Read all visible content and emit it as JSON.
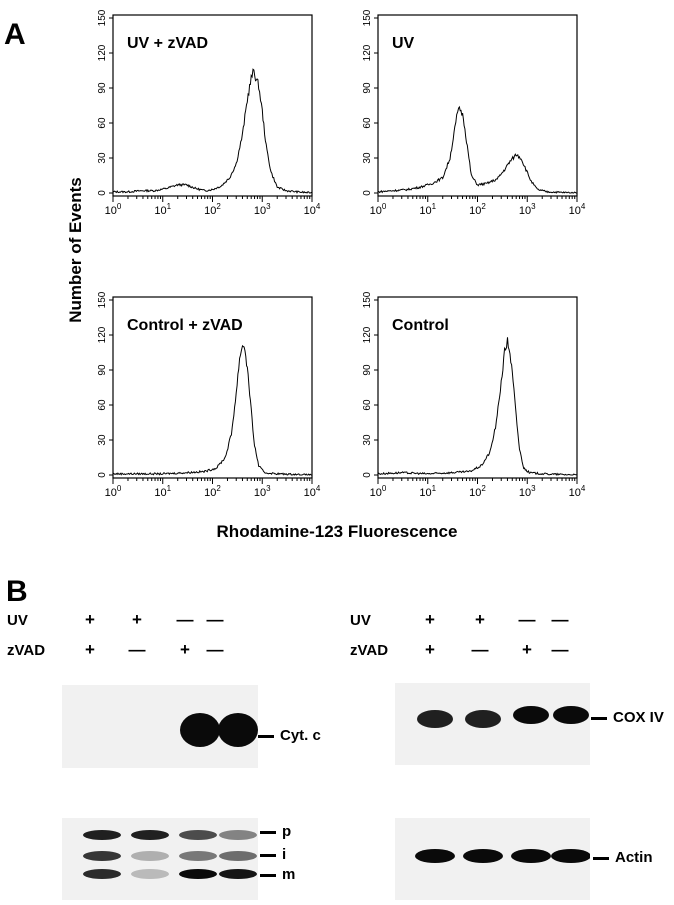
{
  "panel_a": {
    "letter": "A",
    "ylabel": "Number of Events",
    "xlabel": "Rhodamine-123 Fluorescence"
  },
  "chart_data": [
    {
      "type": "line",
      "title": "UV + zVAD",
      "xscale": "log",
      "xlim": [
        1,
        10000
      ],
      "ylim": [
        0,
        150
      ],
      "yticks": [
        "0",
        "30",
        "60",
        "90",
        "120",
        "150"
      ],
      "xticks": [
        "10^0",
        "10^1",
        "10^2",
        "10^3",
        "10^4"
      ],
      "points": [
        [
          1,
          1
        ],
        [
          2,
          1
        ],
        [
          4,
          2
        ],
        [
          7,
          2
        ],
        [
          12,
          4
        ],
        [
          20,
          7
        ],
        [
          30,
          7
        ],
        [
          45,
          4
        ],
        [
          70,
          2
        ],
        [
          100,
          3
        ],
        [
          150,
          6
        ],
        [
          220,
          13
        ],
        [
          300,
          25
        ],
        [
          400,
          50
        ],
        [
          500,
          80
        ],
        [
          600,
          98
        ],
        [
          680,
          105
        ],
        [
          760,
          97
        ],
        [
          850,
          92
        ],
        [
          1000,
          70
        ],
        [
          1200,
          40
        ],
        [
          1500,
          18
        ],
        [
          2000,
          5
        ],
        [
          3000,
          2
        ],
        [
          5000,
          1
        ],
        [
          10000,
          0
        ]
      ]
    },
    {
      "type": "line",
      "title": "UV",
      "xscale": "log",
      "xlim": [
        1,
        10000
      ],
      "ylim": [
        0,
        150
      ],
      "yticks": [
        "0",
        "30",
        "60",
        "90",
        "120",
        "150"
      ],
      "xticks": [
        "10^0",
        "10^1",
        "10^2",
        "10^3",
        "10^4"
      ],
      "points": [
        [
          1,
          1
        ],
        [
          2,
          2
        ],
        [
          4,
          3
        ],
        [
          7,
          5
        ],
        [
          12,
          8
        ],
        [
          20,
          13
        ],
        [
          28,
          30
        ],
        [
          35,
          55
        ],
        [
          40,
          70
        ],
        [
          45,
          72
        ],
        [
          52,
          65
        ],
        [
          60,
          45
        ],
        [
          75,
          15
        ],
        [
          100,
          7
        ],
        [
          150,
          8
        ],
        [
          250,
          12
        ],
        [
          350,
          20
        ],
        [
          450,
          27
        ],
        [
          600,
          33
        ],
        [
          750,
          30
        ],
        [
          900,
          22
        ],
        [
          1200,
          10
        ],
        [
          1600,
          3
        ],
        [
          2500,
          1
        ],
        [
          10000,
          0
        ]
      ]
    },
    {
      "type": "line",
      "title": "Control + zVAD",
      "xscale": "log",
      "xlim": [
        1,
        10000
      ],
      "ylim": [
        0,
        150
      ],
      "yticks": [
        "0",
        "30",
        "60",
        "90",
        "120",
        "150"
      ],
      "xticks": [
        "10^0",
        "10^1",
        "10^2",
        "10^3",
        "10^4"
      ],
      "points": [
        [
          1,
          1
        ],
        [
          3,
          1
        ],
        [
          10,
          1
        ],
        [
          30,
          2
        ],
        [
          70,
          3
        ],
        [
          120,
          6
        ],
        [
          180,
          15
        ],
        [
          240,
          35
        ],
        [
          300,
          70
        ],
        [
          350,
          100
        ],
        [
          400,
          112
        ],
        [
          450,
          108
        ],
        [
          520,
          85
        ],
        [
          600,
          55
        ],
        [
          700,
          25
        ],
        [
          850,
          8
        ],
        [
          1100,
          2
        ],
        [
          2000,
          1
        ],
        [
          10000,
          0
        ]
      ]
    },
    {
      "type": "line",
      "title": "Control",
      "xscale": "log",
      "xlim": [
        1,
        10000
      ],
      "ylim": [
        0,
        150
      ],
      "yticks": [
        "0",
        "30",
        "60",
        "90",
        "120",
        "150"
      ],
      "xticks": [
        "10^0",
        "10^1",
        "10^2",
        "10^3",
        "10^4"
      ],
      "points": [
        [
          1,
          1
        ],
        [
          3,
          2
        ],
        [
          10,
          1
        ],
        [
          30,
          2
        ],
        [
          70,
          3
        ],
        [
          120,
          8
        ],
        [
          180,
          20
        ],
        [
          240,
          45
        ],
        [
          300,
          80
        ],
        [
          350,
          105
        ],
        [
          400,
          115
        ],
        [
          450,
          105
        ],
        [
          520,
          80
        ],
        [
          600,
          50
        ],
        [
          700,
          22
        ],
        [
          850,
          6
        ],
        [
          1100,
          2
        ],
        [
          2000,
          1
        ],
        [
          10000,
          0
        ]
      ]
    }
  ],
  "panel_b": {
    "letter": "B",
    "conditions": [
      {
        "label": "UV",
        "signs": [
          "+",
          "+",
          "—",
          "—"
        ]
      },
      {
        "label": "zVAD",
        "signs": [
          "+",
          "—",
          "+",
          "—"
        ]
      }
    ],
    "blots": {
      "cyt_c": {
        "label": "Cyt. c",
        "intensity": [
          0,
          0,
          1,
          1
        ]
      },
      "cox_iv": {
        "label": "COX IV",
        "intensity": [
          0.9,
          0.9,
          1,
          1
        ]
      },
      "precursor": {
        "markers": [
          "p",
          "i",
          "m"
        ],
        "p": [
          0.9,
          0.9,
          0.7,
          0.45
        ],
        "i": [
          0.8,
          0.25,
          0.5,
          0.55
        ],
        "m": [
          0.85,
          0.2,
          1,
          0.95
        ]
      },
      "actin": {
        "label": "Actin",
        "intensity": [
          1,
          1,
          1,
          1
        ]
      }
    }
  }
}
